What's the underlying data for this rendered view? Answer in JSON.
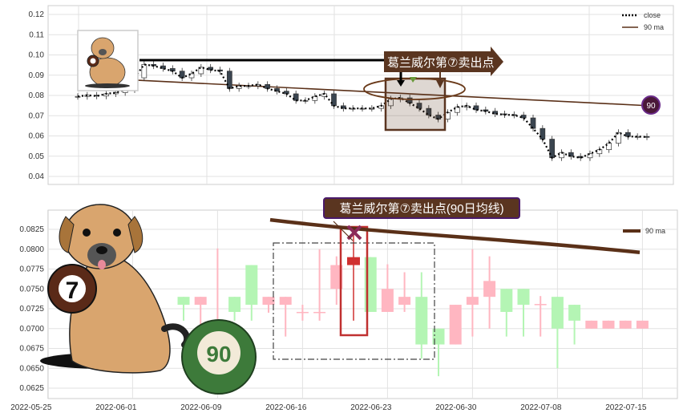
{
  "chart_data": [
    {
      "type": "candlestick",
      "panel": "top",
      "ylim": [
        0.036,
        0.124
      ],
      "yticks": [
        "0.04",
        "0.05",
        "0.06",
        "0.07",
        "0.08",
        "0.09",
        "0.10",
        "0.11",
        "0.12"
      ],
      "grid": true,
      "legend_placement": "top-right",
      "legend": [
        "close",
        "90 ma"
      ],
      "close": [
        0.0795,
        0.0801,
        0.0797,
        0.0808,
        0.0814,
        0.0828,
        0.0887,
        0.0953,
        0.0946,
        0.0933,
        0.092,
        0.0887,
        0.0907,
        0.0939,
        0.0926,
        0.092,
        0.0834,
        0.0847,
        0.0847,
        0.0854,
        0.0834,
        0.0821,
        0.0808,
        0.0775,
        0.0775,
        0.0795,
        0.0808,
        0.0749,
        0.0736,
        0.0736,
        0.0736,
        0.0736,
        0.0749,
        0.0782,
        0.0788,
        0.0762,
        0.0736,
        0.0703,
        0.0683,
        0.0716,
        0.0742,
        0.0749,
        0.0729,
        0.0722,
        0.0709,
        0.0705,
        0.0703,
        0.0689,
        0.0637,
        0.0584,
        0.0492,
        0.0518,
        0.0499,
        0.0492,
        0.0512,
        0.0532,
        0.0564,
        0.0617,
        0.0597,
        0.0597,
        0.0595
      ],
      "ma90": {
        "start": 0.089,
        "end": 0.075
      },
      "ma90_badge": "90",
      "annotation": "葛兰威尔第⑦卖出点",
      "colors": {
        "up": "#ffffff",
        "down": "#3a4550",
        "ma": "#5a3018",
        "box": "#5a3520",
        "badge": "#4a1838",
        "marker": "#6a9a3a"
      }
    },
    {
      "type": "candlestick",
      "panel": "bottom",
      "ylim": [
        0.0613,
        0.084
      ],
      "yticks": [
        "0.0625",
        "0.0650",
        "0.0675",
        "0.0700",
        "0.0725",
        "0.0750",
        "0.0775",
        "0.0800",
        "0.0825"
      ],
      "xticks": [
        "2022-05-25",
        "2022-06-01",
        "2022-06-09",
        "2022-06-16",
        "2022-06-23",
        "2022-06-30",
        "2022-07-08",
        "2022-07-15"
      ],
      "grid": true,
      "legend_placement": "top-right",
      "legend": [
        "90 ma"
      ],
      "annotation": "葛兰威尔第⑦卖出点(90日均线)",
      "candles": [
        {
          "o": 0.074,
          "c": 0.073,
          "h": 0.074,
          "l": 0.071,
          "dir": "down"
        },
        {
          "o": 0.073,
          "c": 0.074,
          "h": 0.074,
          "l": 0.069,
          "dir": "up"
        },
        {
          "o": 0.07,
          "c": 0.0702,
          "h": 0.0801,
          "l": 0.07,
          "dir": "up"
        },
        {
          "o": 0.074,
          "c": 0.0721,
          "h": 0.074,
          "l": 0.071,
          "dir": "down"
        },
        {
          "o": 0.078,
          "c": 0.073,
          "h": 0.078,
          "l": 0.071,
          "dir": "down"
        },
        {
          "o": 0.073,
          "c": 0.074,
          "h": 0.074,
          "l": 0.072,
          "dir": "up"
        },
        {
          "o": 0.073,
          "c": 0.074,
          "h": 0.074,
          "l": 0.069,
          "dir": "up"
        },
        {
          "o": 0.072,
          "c": 0.0721,
          "h": 0.073,
          "l": 0.071,
          "dir": "up"
        },
        {
          "o": 0.072,
          "c": 0.0721,
          "h": 0.08,
          "l": 0.071,
          "dir": "up"
        },
        {
          "o": 0.075,
          "c": 0.078,
          "h": 0.0791,
          "l": 0.073,
          "dir": "up"
        },
        {
          "o": 0.078,
          "c": 0.079,
          "h": 0.0821,
          "l": 0.071,
          "dir": "signal"
        },
        {
          "o": 0.079,
          "c": 0.0721,
          "h": 0.079,
          "l": 0.0721,
          "dir": "down"
        },
        {
          "o": 0.0721,
          "c": 0.075,
          "h": 0.0781,
          "l": 0.0721,
          "dir": "up"
        },
        {
          "o": 0.073,
          "c": 0.074,
          "h": 0.0771,
          "l": 0.0721,
          "dir": "up"
        },
        {
          "o": 0.074,
          "c": 0.068,
          "h": 0.0771,
          "l": 0.0662,
          "dir": "down"
        },
        {
          "o": 0.07,
          "c": 0.068,
          "h": 0.07,
          "l": 0.064,
          "dir": "down"
        },
        {
          "o": 0.068,
          "c": 0.073,
          "h": 0.073,
          "l": 0.068,
          "dir": "up"
        },
        {
          "o": 0.073,
          "c": 0.074,
          "h": 0.08,
          "l": 0.069,
          "dir": "up"
        },
        {
          "o": 0.074,
          "c": 0.076,
          "h": 0.0791,
          "l": 0.07,
          "dir": "up"
        },
        {
          "o": 0.075,
          "c": 0.0721,
          "h": 0.075,
          "l": 0.069,
          "dir": "down"
        },
        {
          "o": 0.075,
          "c": 0.073,
          "h": 0.075,
          "l": 0.069,
          "dir": "down"
        },
        {
          "o": 0.073,
          "c": 0.0731,
          "h": 0.0741,
          "l": 0.069,
          "dir": "up"
        },
        {
          "o": 0.074,
          "c": 0.07,
          "h": 0.074,
          "l": 0.065,
          "dir": "down"
        },
        {
          "o": 0.073,
          "c": 0.071,
          "h": 0.073,
          "l": 0.068,
          "dir": "down"
        },
        {
          "o": 0.07,
          "c": 0.071,
          "h": 0.071,
          "l": 0.07,
          "dir": "up"
        },
        {
          "o": 0.07,
          "c": 0.071,
          "h": 0.071,
          "l": 0.07,
          "dir": "up"
        },
        {
          "o": 0.07,
          "c": 0.071,
          "h": 0.071,
          "l": 0.07,
          "dir": "up"
        },
        {
          "o": 0.07,
          "c": 0.071,
          "h": 0.071,
          "l": 0.07,
          "dir": "up"
        }
      ],
      "ma90": {
        "start": 0.0837,
        "end": 0.0796
      },
      "illustration_text": [
        "7",
        "90"
      ],
      "colors": {
        "up": "#ffb6c1",
        "down": "#b4f5b4",
        "signal": "#d03030",
        "ma": "#5a3018",
        "box": "#5a3520",
        "box_border": "#4a1a6a",
        "mark": "#8b2a5a",
        "highlight": "#c03030"
      }
    }
  ]
}
